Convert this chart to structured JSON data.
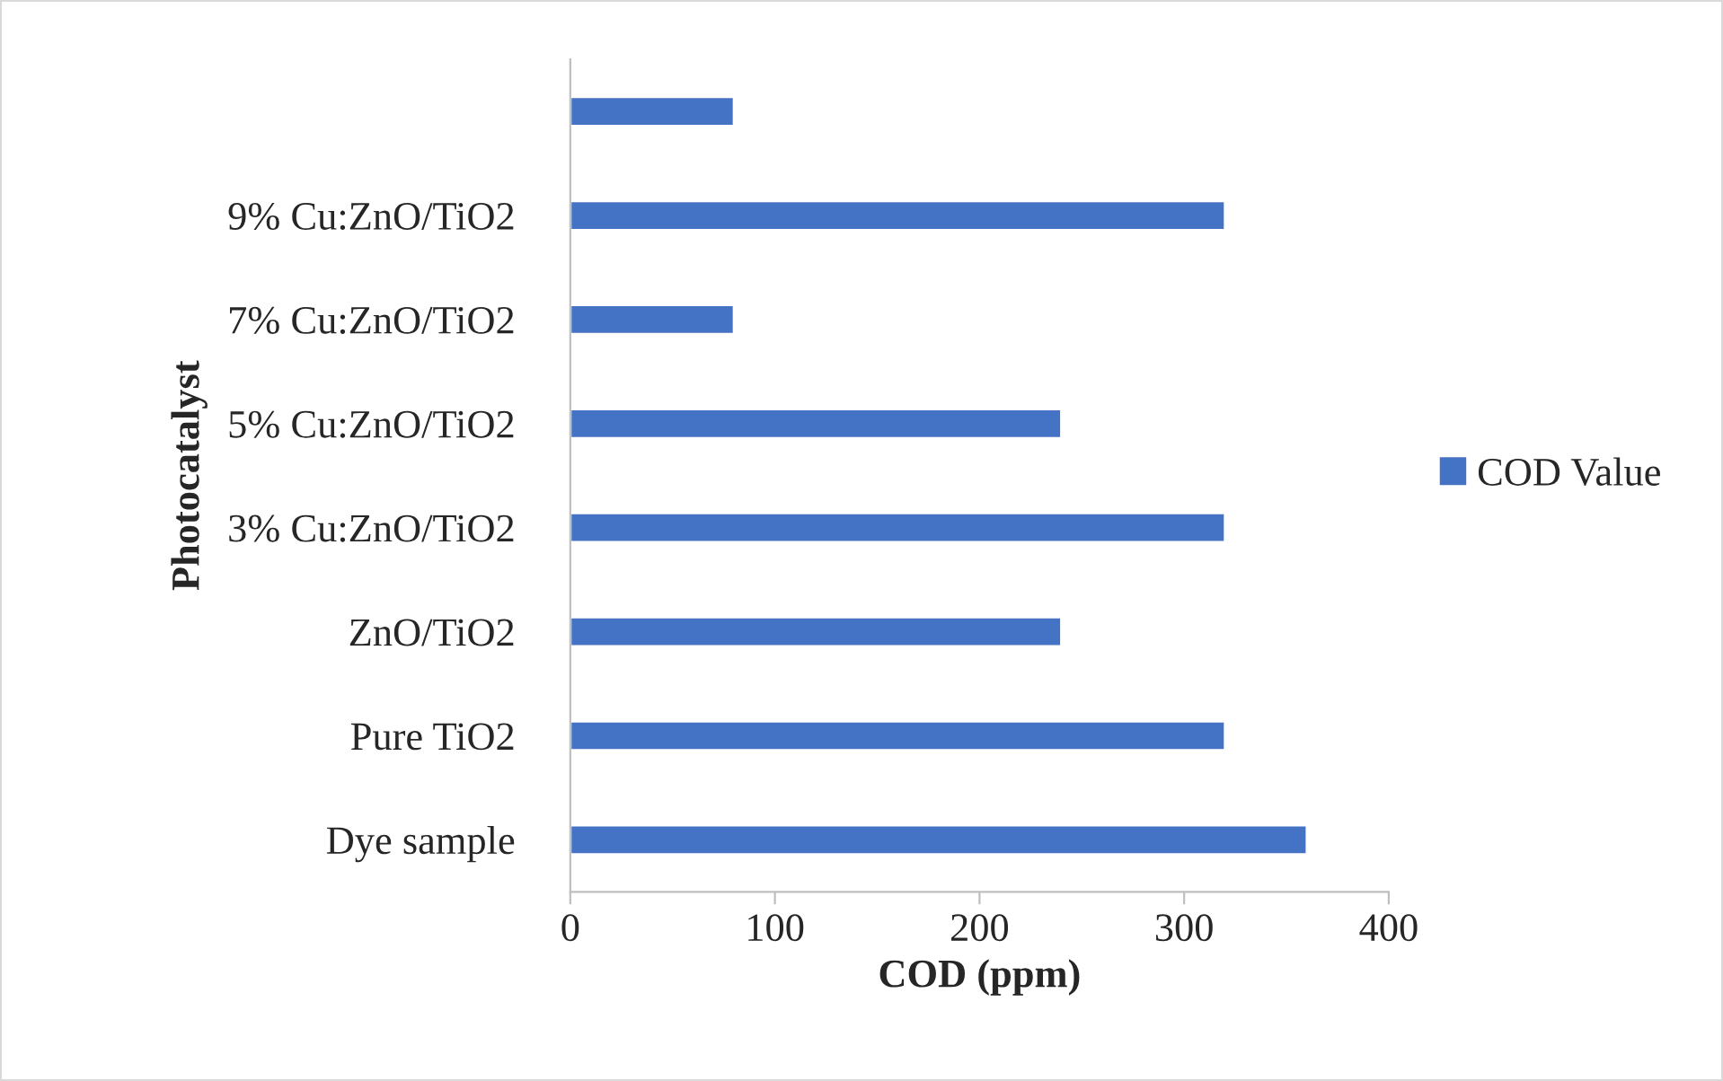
{
  "chart_data": {
    "type": "bar",
    "orientation": "horizontal",
    "xlabel": "COD (ppm)",
    "ylabel": "Photocatalyst",
    "categories": [
      null,
      "9% Cu:ZnO/TiO2",
      "7% Cu:ZnO/TiO2",
      "5% Cu:ZnO/TiO2",
      "3% Cu:ZnO/TiO2",
      "ZnO/TiO2",
      "Pure TiO2",
      "Dye sample"
    ],
    "series": [
      {
        "name": "COD Value",
        "color": "#4472c4",
        "values": [
          80,
          320,
          80,
          240,
          320,
          240,
          320,
          360
        ]
      }
    ],
    "xlim": [
      0,
      400
    ],
    "xticks": [
      0,
      100,
      200,
      300,
      400
    ],
    "grid": false,
    "legend": "right"
  }
}
